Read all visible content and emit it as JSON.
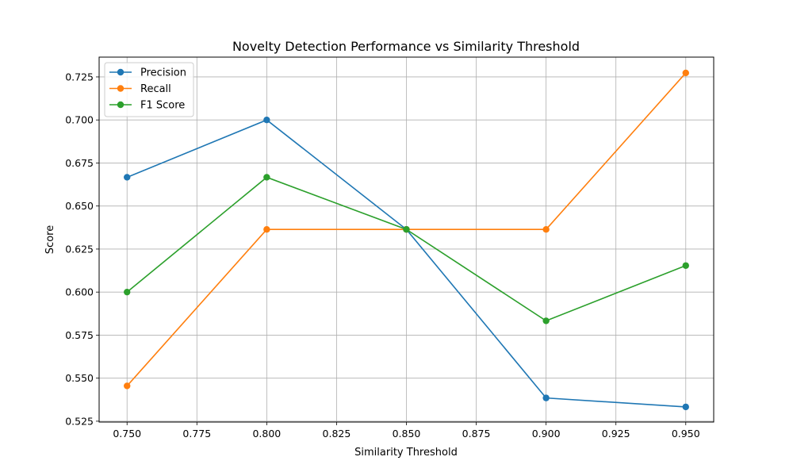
{
  "chart_data": {
    "type": "line",
    "title": "Novelty Detection Performance vs Similarity Threshold",
    "xlabel": "Similarity Threshold",
    "ylabel": "Score",
    "x": [
      0.75,
      0.8,
      0.85,
      0.9,
      0.95
    ],
    "xlim": [
      0.74,
      0.96
    ],
    "ylim": [
      0.5245,
      0.7365
    ],
    "xticks": [
      "0.750",
      "0.775",
      "0.800",
      "0.825",
      "0.850",
      "0.875",
      "0.900",
      "0.925",
      "0.950"
    ],
    "xtick_values": [
      0.75,
      0.775,
      0.8,
      0.825,
      0.85,
      0.875,
      0.9,
      0.925,
      0.95
    ],
    "yticks": [
      "0.525",
      "0.550",
      "0.575",
      "0.600",
      "0.625",
      "0.650",
      "0.675",
      "0.700",
      "0.725"
    ],
    "ytick_values": [
      0.525,
      0.55,
      0.575,
      0.6,
      0.625,
      0.65,
      0.675,
      0.7,
      0.725
    ],
    "grid": true,
    "legend_position": "top-left",
    "series": [
      {
        "name": "Precision",
        "color": "#1f77b4",
        "marker": "circle",
        "values": [
          0.6667,
          0.7,
          0.6364,
          0.5385,
          0.5333
        ]
      },
      {
        "name": "Recall",
        "color": "#ff7f0e",
        "marker": "circle",
        "values": [
          0.5455,
          0.6364,
          0.6364,
          0.6364,
          0.7273
        ]
      },
      {
        "name": "F1 Score",
        "color": "#2ca02c",
        "marker": "circle",
        "values": [
          0.6,
          0.6667,
          0.6364,
          0.5833,
          0.6154
        ]
      }
    ]
  }
}
